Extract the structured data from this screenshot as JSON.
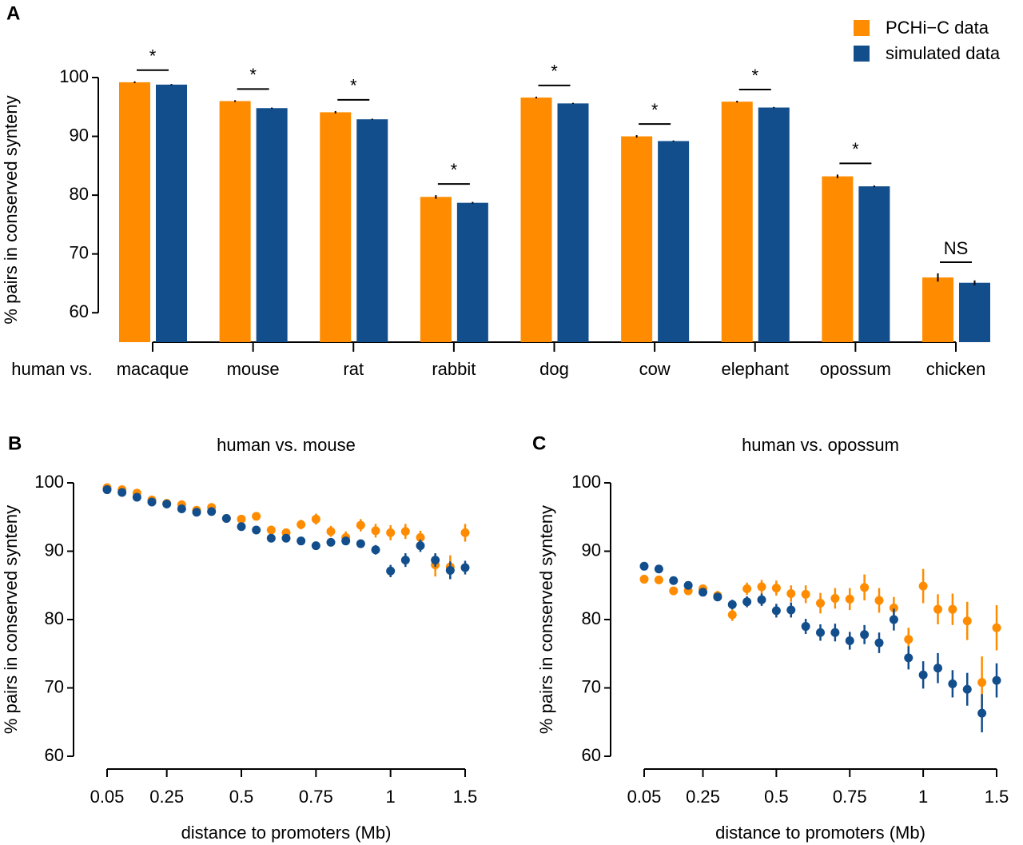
{
  "chart_data": [
    {
      "panel": "A",
      "type": "bar",
      "ylabel": "% pairs in conserved synteny",
      "xlabel": "human vs.",
      "categories": [
        "macaque",
        "mouse",
        "rat",
        "rabbit",
        "dog",
        "cow",
        "elephant",
        "opossum",
        "chicken"
      ],
      "annotations": [
        "*",
        "*",
        "*",
        "*",
        "*",
        "*",
        "*",
        "*",
        "NS"
      ],
      "series": [
        {
          "name": "PCHi−C data",
          "color": "#ff8c00",
          "values": [
            99.2,
            96.0,
            94.1,
            79.7,
            96.6,
            90.0,
            95.9,
            83.2,
            66.0
          ],
          "errors": [
            0.15,
            0.15,
            0.2,
            0.3,
            0.15,
            0.2,
            0.15,
            0.3,
            0.7
          ]
        },
        {
          "name": "simulated data",
          "color": "#124e8c",
          "values": [
            98.8,
            94.8,
            92.9,
            78.7,
            95.6,
            89.2,
            94.9,
            81.5,
            65.1
          ],
          "errors": [
            0.1,
            0.1,
            0.1,
            0.15,
            0.1,
            0.1,
            0.1,
            0.15,
            0.4
          ]
        }
      ],
      "ylim": [
        55,
        100
      ],
      "yticks": [
        60,
        70,
        80,
        90,
        100
      ],
      "legend": "top-right"
    },
    {
      "panel": "B",
      "type": "scatter",
      "title": "human vs. mouse",
      "ylabel": "% pairs in conserved synteny",
      "xlabel": "distance to promoters (Mb)",
      "categories": [
        "0.05",
        null,
        null,
        null,
        "0.25",
        null,
        null,
        null,
        null,
        "0.5",
        null,
        null,
        null,
        null,
        "0.75",
        null,
        null,
        null,
        null,
        "1",
        null,
        null,
        null,
        null,
        "1.5"
      ],
      "series": [
        {
          "color": "#ff8c00",
          "values": [
            99.3,
            99.0,
            98.5,
            97.5,
            97.0,
            96.8,
            96.0,
            96.4,
            94.8,
            94.7,
            95.1,
            93.1,
            92.7,
            93.9,
            94.7,
            92.9,
            92.0,
            93.8,
            93.0,
            92.7,
            92.9,
            92.0,
            88.0,
            87.7,
            92.7
          ],
          "errors": [
            0.3,
            0.3,
            0.3,
            0.3,
            0.3,
            0.3,
            0.4,
            0.4,
            0.4,
            0.5,
            0.5,
            0.6,
            0.6,
            0.7,
            0.8,
            0.8,
            0.9,
            0.9,
            1.0,
            1.1,
            1.1,
            1.0,
            1.7,
            1.7,
            1.3
          ]
        },
        {
          "color": "#124e8c",
          "values": [
            99.0,
            98.6,
            97.9,
            97.2,
            96.9,
            96.2,
            95.7,
            95.8,
            94.8,
            93.6,
            93.1,
            91.9,
            91.9,
            91.5,
            90.8,
            91.3,
            91.5,
            91.1,
            90.2,
            87.1,
            88.7,
            90.8,
            88.7,
            87.2,
            87.6
          ],
          "errors": [
            0.3,
            0.3,
            0.3,
            0.3,
            0.3,
            0.3,
            0.3,
            0.3,
            0.3,
            0.4,
            0.4,
            0.4,
            0.4,
            0.4,
            0.5,
            0.5,
            0.5,
            0.6,
            0.7,
            0.9,
            1.0,
            0.9,
            1.0,
            1.3,
            1.0
          ]
        }
      ],
      "ylim": [
        60,
        100
      ],
      "yticks": [
        60,
        70,
        80,
        90,
        100
      ]
    },
    {
      "panel": "C",
      "type": "scatter",
      "title": "human vs. opossum",
      "ylabel": "% pairs in conserved synteny",
      "xlabel": "distance to promoters (Mb)",
      "categories": [
        "0.05",
        null,
        null,
        null,
        "0.25",
        null,
        null,
        null,
        null,
        "0.5",
        null,
        null,
        null,
        null,
        "0.75",
        null,
        null,
        null,
        null,
        "1",
        null,
        null,
        null,
        null,
        "1.5"
      ],
      "series": [
        {
          "color": "#ff8c00",
          "values": [
            85.9,
            85.8,
            84.2,
            84.2,
            84.5,
            83.5,
            80.7,
            84.5,
            84.8,
            84.6,
            83.8,
            83.7,
            82.4,
            83.1,
            83.0,
            84.7,
            82.8,
            81.7,
            77.1,
            84.9,
            81.5,
            81.5,
            79.8,
            70.8,
            78.8
          ],
          "errors": [
            0.6,
            0.6,
            0.6,
            0.6,
            0.6,
            0.7,
            0.9,
            0.9,
            1.0,
            1.1,
            1.2,
            1.3,
            1.5,
            1.5,
            1.6,
            1.9,
            1.8,
            1.6,
            1.7,
            2.5,
            2.2,
            2.3,
            2.8,
            3.8,
            3.3
          ]
        },
        {
          "color": "#124e8c",
          "values": [
            87.8,
            87.4,
            85.7,
            85.0,
            84.0,
            83.3,
            82.2,
            82.6,
            82.9,
            81.3,
            81.4,
            79.0,
            78.1,
            78.1,
            76.9,
            77.8,
            76.6,
            80.0,
            74.4,
            71.9,
            72.9,
            70.6,
            69.8,
            66.3,
            71.1
          ],
          "errors": [
            0.5,
            0.5,
            0.6,
            0.6,
            0.6,
            0.6,
            0.7,
            0.8,
            0.9,
            1.0,
            1.1,
            1.1,
            1.2,
            1.3,
            1.3,
            1.4,
            1.5,
            1.6,
            1.7,
            2.0,
            2.2,
            2.0,
            2.4,
            2.8,
            2.5
          ]
        }
      ],
      "ylim": [
        60,
        100
      ],
      "yticks": [
        60,
        70,
        80,
        90,
        100
      ]
    }
  ]
}
